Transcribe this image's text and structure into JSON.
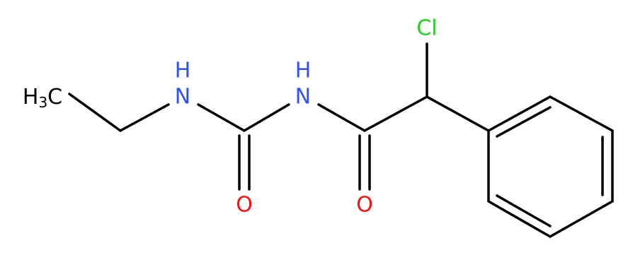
{
  "molecule": {
    "atoms": [
      {
        "symbol": "H",
        "count": "3",
        "tail": "C"
      },
      {
        "symbol": "N",
        "h": "H"
      },
      {
        "symbol": "N",
        "h": "H"
      },
      {
        "symbol": "O"
      },
      {
        "symbol": "O"
      },
      {
        "symbol": "Cl"
      }
    ]
  }
}
